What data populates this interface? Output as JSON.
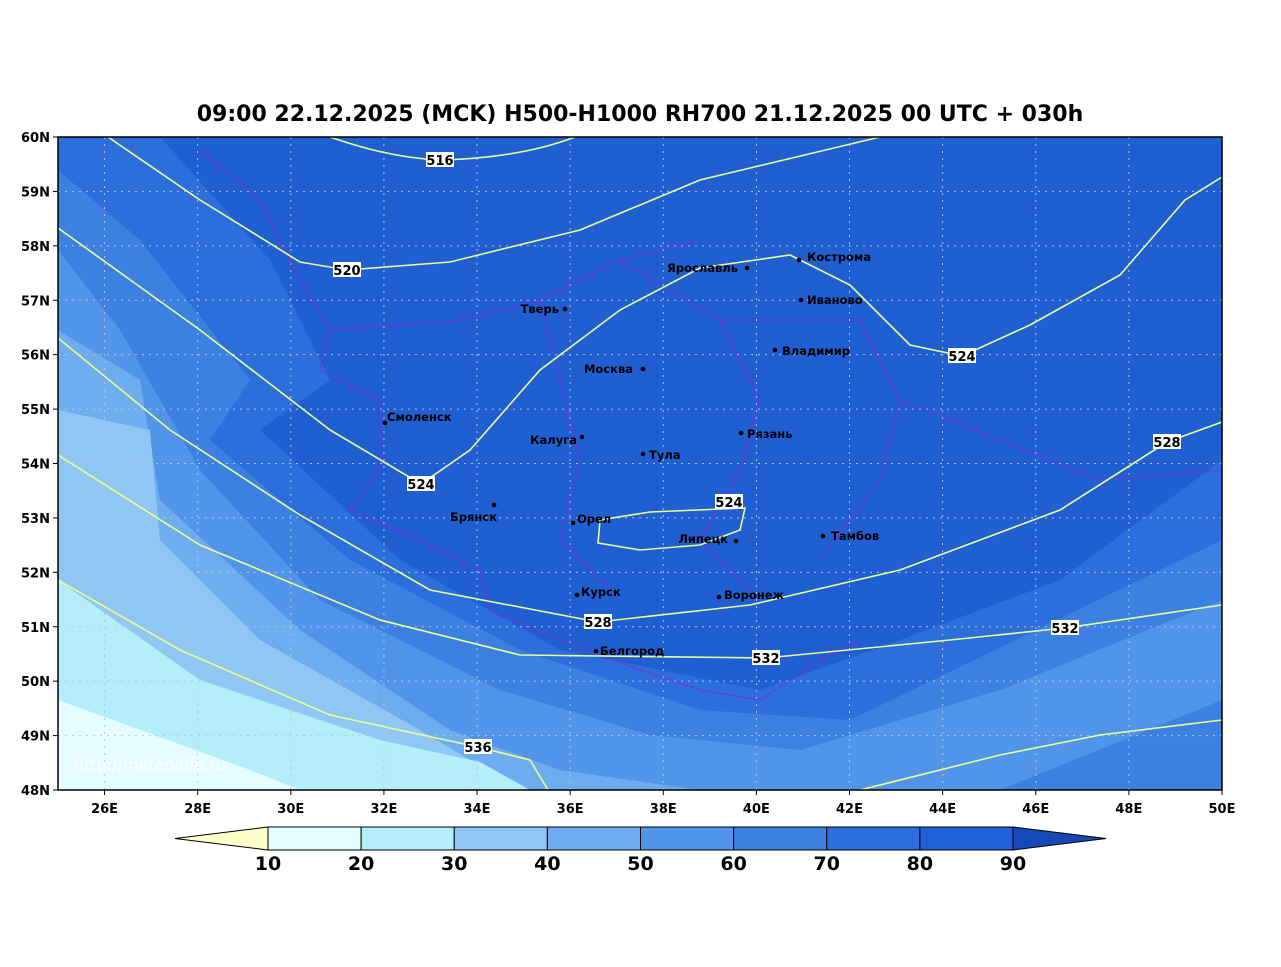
{
  "header": {
    "title": "09:00 22.12.2025 (MCK) H500-H1000 RH700 21.12.2025 00 UTC + 030h"
  },
  "map": {
    "lonlim": [
      25,
      50
    ],
    "latlim": [
      48,
      60
    ],
    "lat_ticks": [
      {
        "value": 60,
        "label": "60N"
      },
      {
        "value": 59,
        "label": "59N"
      },
      {
        "value": 58,
        "label": "58N"
      },
      {
        "value": 57,
        "label": "57N"
      },
      {
        "value": 56,
        "label": "56N"
      },
      {
        "value": 55,
        "label": "55N"
      },
      {
        "value": 54,
        "label": "54N"
      },
      {
        "value": 53,
        "label": "53N"
      },
      {
        "value": 52,
        "label": "52N"
      },
      {
        "value": 51,
        "label": "51N"
      },
      {
        "value": 50,
        "label": "50N"
      },
      {
        "value": 49,
        "label": "49N"
      },
      {
        "value": 48,
        "label": "48N"
      }
    ],
    "lon_ticks": [
      {
        "value": 26,
        "label": "26E"
      },
      {
        "value": 28,
        "label": "28E"
      },
      {
        "value": 30,
        "label": "30E"
      },
      {
        "value": 32,
        "label": "32E"
      },
      {
        "value": 34,
        "label": "34E"
      },
      {
        "value": 36,
        "label": "36E"
      },
      {
        "value": 38,
        "label": "38E"
      },
      {
        "value": 40,
        "label": "40E"
      },
      {
        "value": 42,
        "label": "42E"
      },
      {
        "value": 44,
        "label": "44E"
      },
      {
        "value": 46,
        "label": "46E"
      },
      {
        "value": 48,
        "label": "48E"
      },
      {
        "value": 50,
        "label": "50E"
      }
    ],
    "cities": [
      "Кострома",
      "Ярославль",
      "Иваново",
      "Тверь",
      "Владимир",
      "Москва",
      "Смоленск",
      "Рязань",
      "Калуга",
      "Тула",
      "Брянск",
      "Орел",
      "Липецк",
      "Тамбов",
      "Курск",
      "Воронеж",
      "Белгород"
    ],
    "contour_labels": [
      516,
      520,
      524,
      524,
      524,
      528,
      528,
      532,
      532,
      536
    ],
    "url": "http://meteoinfo.ru"
  },
  "colorbar": {
    "levels": [
      10,
      20,
      30,
      40,
      50,
      60,
      70,
      80,
      90
    ],
    "colors": [
      "#ffffcc",
      "#e6fdff",
      "#b4eef8",
      "#90c6f4",
      "#6eacf0",
      "#5095ea",
      "#3c80e2",
      "#2c6edb",
      "#2160d6",
      "#1548b8"
    ]
  }
}
